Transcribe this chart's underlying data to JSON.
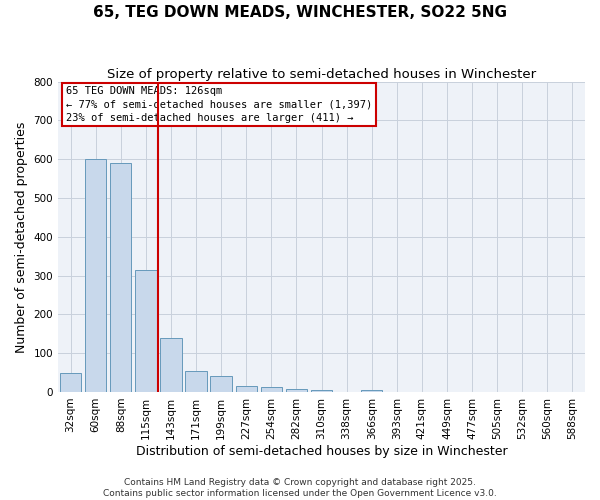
{
  "title": "65, TEG DOWN MEADS, WINCHESTER, SO22 5NG",
  "subtitle": "Size of property relative to semi-detached houses in Winchester",
  "xlabel": "Distribution of semi-detached houses by size in Winchester",
  "ylabel": "Number of semi-detached properties",
  "bin_labels": [
    "32sqm",
    "60sqm",
    "88sqm",
    "115sqm",
    "143sqm",
    "171sqm",
    "199sqm",
    "227sqm",
    "254sqm",
    "282sqm",
    "310sqm",
    "338sqm",
    "366sqm",
    "393sqm",
    "421sqm",
    "449sqm",
    "477sqm",
    "505sqm",
    "532sqm",
    "560sqm",
    "588sqm"
  ],
  "bar_values": [
    50,
    600,
    590,
    315,
    140,
    55,
    42,
    15,
    12,
    8,
    5,
    0,
    6,
    0,
    0,
    0,
    0,
    0,
    0,
    0,
    0
  ],
  "bar_color": "#c8d8eb",
  "bar_edge_color": "#6699bb",
  "vline_x_index": 3.5,
  "vline_color": "#cc0000",
  "annotation_text": "65 TEG DOWN MEADS: 126sqm\n← 77% of semi-detached houses are smaller (1,397)\n23% of semi-detached houses are larger (411) →",
  "box_color": "#cc0000",
  "ylim": [
    0,
    800
  ],
  "yticks": [
    0,
    100,
    200,
    300,
    400,
    500,
    600,
    700,
    800
  ],
  "footer1": "Contains HM Land Registry data © Crown copyright and database right 2025.",
  "footer2": "Contains public sector information licensed under the Open Government Licence v3.0.",
  "title_fontsize": 11,
  "subtitle_fontsize": 9.5,
  "label_fontsize": 9,
  "tick_fontsize": 7.5,
  "annotation_fontsize": 7.5,
  "footer_fontsize": 6.5,
  "bg_color": "#ffffff",
  "plot_bg_color": "#eef2f8",
  "grid_color": "#c8d0dc"
}
